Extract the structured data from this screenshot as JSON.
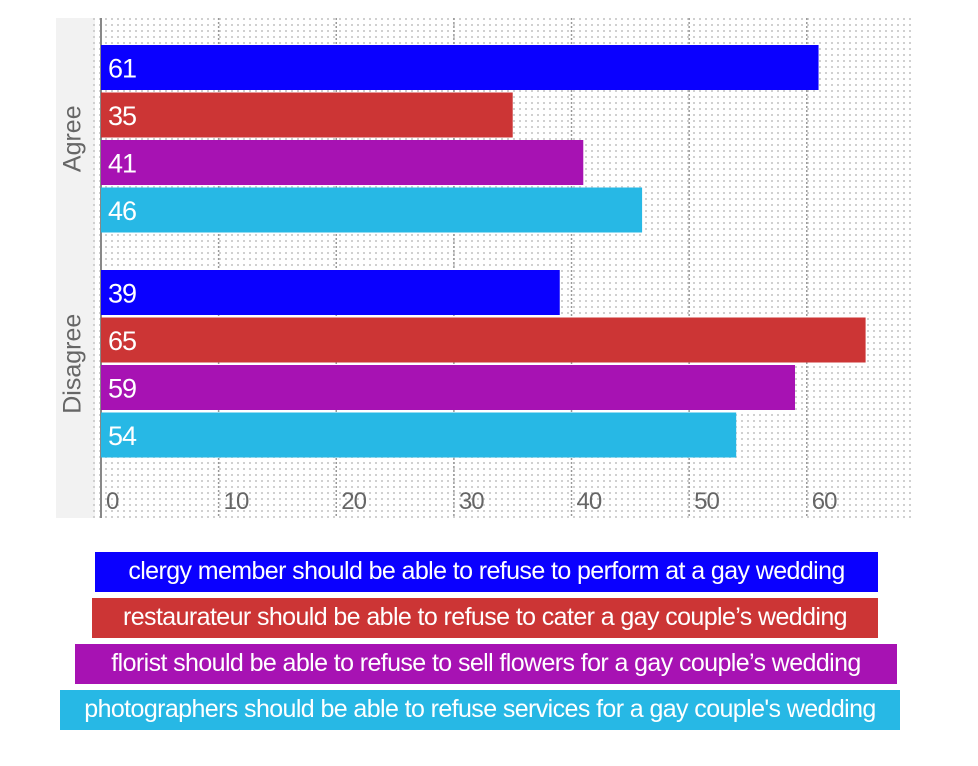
{
  "chart_data": {
    "type": "bar",
    "orientation": "horizontal",
    "title": "",
    "xlabel": "",
    "ylabel": "",
    "groups": [
      "Agree",
      "Disagree"
    ],
    "xlim": [
      0,
      69.2
    ],
    "xticks": [
      0,
      10,
      20,
      30,
      40,
      50,
      60
    ],
    "xtick_labels": [
      "0",
      "10",
      "20",
      "30",
      "40",
      "50",
      "60"
    ],
    "grid": true,
    "legend_position": "bottom",
    "series": [
      {
        "name": "clergy member should be able to refuse to perform at a gay wedding",
        "color": "#0a00ff",
        "values": [
          61,
          39
        ]
      },
      {
        "name": "restaurateur should be able to refuse to cater a gay couple’s wedding",
        "color": "#cc3535",
        "values": [
          35,
          65
        ]
      },
      {
        "name": "florist should be able to refuse to sell flowers for a gay couple’s wedding",
        "color": "#a712b3",
        "values": [
          41,
          59
        ]
      },
      {
        "name": "photographers should be able to refuse services for a gay couple's wedding",
        "color": "#27b8e5",
        "values": [
          46,
          54
        ]
      }
    ]
  },
  "colors": {
    "side_panel": "#f2f2f2",
    "tick_text": "#666666",
    "group_label_text": "#666666",
    "grid_dots": "#d0d0d0",
    "grid_major": "#999999"
  }
}
